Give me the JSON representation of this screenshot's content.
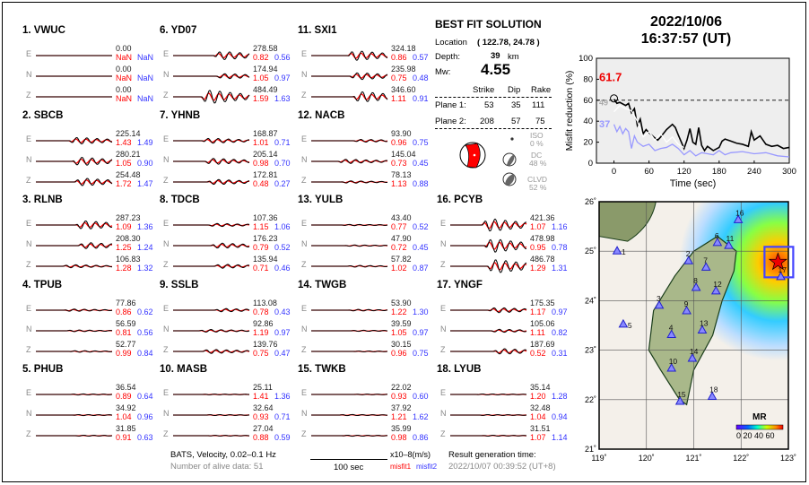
{
  "stations": [
    {
      "name": "1.  VWUC",
      "col": 0,
      "row": 0,
      "comps": [
        [
          "E",
          "0.00",
          "NaN",
          "NaN"
        ],
        [
          "N",
          "0.00",
          "NaN",
          "NaN"
        ],
        [
          "Z",
          "0.00",
          "NaN",
          "NaN"
        ]
      ]
    },
    {
      "name": "2.  SBCB",
      "col": 0,
      "row": 1,
      "comps": [
        [
          "E",
          "225.14",
          "1.43",
          "1.49"
        ],
        [
          "N",
          "280.21",
          "1.05",
          "0.90"
        ],
        [
          "Z",
          "254.48",
          "1.72",
          "1.47"
        ]
      ]
    },
    {
      "name": "3.  RLNB",
      "col": 0,
      "row": 2,
      "comps": [
        [
          "E",
          "287.23",
          "1.09",
          "1.36"
        ],
        [
          "N",
          "208.30",
          "1.25",
          "1.24"
        ],
        [
          "Z",
          "106.83",
          "1.28",
          "1.32"
        ]
      ]
    },
    {
      "name": "4.  TPUB",
      "col": 0,
      "row": 3,
      "comps": [
        [
          "E",
          "77.86",
          "0.86",
          "0.62"
        ],
        [
          "N",
          "56.59",
          "0.81",
          "0.56"
        ],
        [
          "Z",
          "52.77",
          "0.99",
          "0.84"
        ]
      ]
    },
    {
      "name": "5.  PHUB",
      "col": 0,
      "row": 4,
      "comps": [
        [
          "E",
          "36.54",
          "0.89",
          "0.64"
        ],
        [
          "N",
          "34.92",
          "1.04",
          "0.96"
        ],
        [
          "Z",
          "31.85",
          "0.91",
          "0.63"
        ]
      ]
    },
    {
      "name": "6.  YD07",
      "col": 1,
      "row": 0,
      "comps": [
        [
          "E",
          "278.58",
          "0.82",
          "0.56"
        ],
        [
          "N",
          "174.94",
          "1.05",
          "0.97"
        ],
        [
          "Z",
          "484.49",
          "1.59",
          "1.63"
        ]
      ]
    },
    {
      "name": "7.  YHNB",
      "col": 1,
      "row": 1,
      "comps": [
        [
          "E",
          "168.87",
          "1.01",
          "0.71"
        ],
        [
          "N",
          "205.14",
          "0.98",
          "0.70"
        ],
        [
          "Z",
          "172.81",
          "0.48",
          "0.27"
        ]
      ]
    },
    {
      "name": "8.  TDCB",
      "col": 1,
      "row": 2,
      "comps": [
        [
          "E",
          "107.36",
          "1.15",
          "1.06"
        ],
        [
          "N",
          "176.23",
          "0.79",
          "0.52"
        ],
        [
          "Z",
          "135.94",
          "0.71",
          "0.46"
        ]
      ]
    },
    {
      "name": "9.  SSLB",
      "col": 1,
      "row": 3,
      "comps": [
        [
          "E",
          "113.08",
          "0.78",
          "0.43"
        ],
        [
          "N",
          "92.86",
          "1.19",
          "0.97"
        ],
        [
          "Z",
          "139.76",
          "0.75",
          "0.47"
        ]
      ]
    },
    {
      "name": "10. MASB",
      "col": 1,
      "row": 4,
      "comps": [
        [
          "E",
          "25.11",
          "1.41",
          "1.36"
        ],
        [
          "N",
          "32.64",
          "0.93",
          "0.71"
        ],
        [
          "Z",
          "27.04",
          "0.88",
          "0.59"
        ]
      ]
    },
    {
      "name": "11. SXI1",
      "col": 2,
      "row": 0,
      "comps": [
        [
          "E",
          "324.18",
          "0.86",
          "0.57"
        ],
        [
          "N",
          "235.98",
          "0.75",
          "0.48"
        ],
        [
          "Z",
          "346.60",
          "1.11",
          "0.91"
        ]
      ]
    },
    {
      "name": "12. NACB",
      "col": 2,
      "row": 1,
      "comps": [
        [
          "E",
          "93.90",
          "0.96",
          "0.75"
        ],
        [
          "N",
          "145.04",
          "0.73",
          "0.45"
        ],
        [
          "Z",
          "78.13",
          "1.13",
          "0.88"
        ]
      ]
    },
    {
      "name": "13. YULB",
      "col": 2,
      "row": 2,
      "comps": [
        [
          "E",
          "43.40",
          "0.77",
          "0.52"
        ],
        [
          "N",
          "47.90",
          "0.72",
          "0.45"
        ],
        [
          "Z",
          "57.82",
          "1.02",
          "0.87"
        ]
      ]
    },
    {
      "name": "14. TWGB",
      "col": 2,
      "row": 3,
      "comps": [
        [
          "E",
          "53.90",
          "1.22",
          "1.30"
        ],
        [
          "N",
          "39.59",
          "1.05",
          "0.97"
        ],
        [
          "Z",
          "30.15",
          "0.96",
          "0.75"
        ]
      ]
    },
    {
      "name": "15. TWKB",
      "col": 2,
      "row": 4,
      "comps": [
        [
          "E",
          "22.02",
          "0.93",
          "0.60"
        ],
        [
          "N",
          "37.92",
          "1.21",
          "1.62"
        ],
        [
          "Z",
          "35.99",
          "0.98",
          "0.86"
        ]
      ]
    },
    {
      "name": "16. PCYB",
      "col": 3,
      "row": 2,
      "comps": [
        [
          "E",
          "421.36",
          "1.07",
          "1.16"
        ],
        [
          "N",
          "478.98",
          "0.95",
          "0.78"
        ],
        [
          "Z",
          "486.78",
          "1.29",
          "1.31"
        ]
      ]
    },
    {
      "name": "17. YNGF",
      "col": 3,
      "row": 3,
      "comps": [
        [
          "E",
          "175.35",
          "1.17",
          "0.97"
        ],
        [
          "N",
          "105.06",
          "1.11",
          "0.82"
        ],
        [
          "Z",
          "187.69",
          "0.52",
          "0.31"
        ]
      ]
    },
    {
      "name": "18. LYUB",
      "col": 3,
      "row": 4,
      "comps": [
        [
          "E",
          "35.14",
          "1.20",
          "1.28"
        ],
        [
          "N",
          "32.48",
          "1.04",
          "0.94"
        ],
        [
          "Z",
          "31.51",
          "1.07",
          "1.14"
        ]
      ]
    }
  ],
  "footer": {
    "network": "BATS, Velocity, 0.02–0.1 Hz",
    "alive": "Number of alive data: 51",
    "scale": "100 sec",
    "units": "x10–8(m/s)",
    "misfit1": "misfit1",
    "misfit2": "misfit2",
    "gen_label": "Result generation time:",
    "gen_time": "2022/10/07 00:39:52 (UT+8)"
  },
  "solution": {
    "title": "BEST FIT SOLUTION",
    "location_label": "Location",
    "location": "( 122.78,  24.78 )",
    "depth_label": "Depth:",
    "depth": "39",
    "depth_unit": "km",
    "mw_label": "Mw:",
    "mw": "4.55",
    "headers": [
      "Strike",
      "Dip",
      "Rake"
    ],
    "planes": [
      {
        "label": "Plane 1:",
        "strike": "53",
        "dip": "35",
        "rake": "111"
      },
      {
        "label": "Plane 2:",
        "strike": "208",
        "dip": "57",
        "rake": "75"
      }
    ],
    "iso_label": "ISO",
    "iso": "0  %",
    "dc_label": "DC",
    "dc": "48 %",
    "clvd_label": "CLVD",
    "clvd": "52 %"
  },
  "event": {
    "date": "2022/10/06",
    "time": "16:37:57  (UT)"
  },
  "chart_data": {
    "type": "line",
    "xlabel": "Time (sec)",
    "ylabel": "Misfit reduction (%)",
    "xlim": [
      -30,
      300
    ],
    "ylim": [
      0,
      100
    ],
    "xticks": [
      "0",
      "60",
      "120",
      "180",
      "240",
      "300"
    ],
    "yticks": [
      "0",
      "20",
      "40",
      "60",
      "80",
      "100"
    ],
    "best_label": "61.7",
    "label_gray": "49",
    "label_blue": "37",
    "threshold": 60,
    "series": [
      {
        "color": "#000000",
        "x": [
          0,
          5,
          10,
          20,
          25,
          30,
          35,
          40,
          45,
          50,
          55,
          60,
          70,
          75,
          80,
          90,
          100,
          105,
          110,
          120,
          125,
          130,
          135,
          140,
          145,
          150,
          155,
          160,
          170,
          180,
          185,
          190,
          200,
          210,
          220,
          230,
          235,
          240,
          250,
          260,
          270,
          280,
          290,
          300
        ],
        "y": [
          61,
          57,
          58,
          55,
          57,
          48,
          52,
          36,
          42,
          28,
          32,
          29,
          24,
          22,
          25,
          32,
          37,
          34,
          27,
          14,
          22,
          33,
          20,
          18,
          34,
          17,
          12,
          16,
          12,
          15,
          21,
          23,
          21,
          19,
          18,
          16,
          30,
          22,
          26,
          18,
          16,
          17,
          14,
          15
        ]
      },
      {
        "color": "#ffffff",
        "x": [
          0,
          10,
          20,
          30,
          35,
          40,
          50,
          60,
          70,
          80,
          90,
          100,
          110,
          120
        ],
        "y": [
          49,
          55,
          52,
          50,
          45,
          40,
          25,
          30,
          22,
          28,
          20,
          25,
          18,
          15
        ]
      },
      {
        "color": "#9999ff",
        "x": [
          0,
          5,
          10,
          15,
          20,
          25,
          30,
          35,
          40,
          50,
          60,
          70,
          80,
          90,
          100,
          110,
          120,
          130,
          140,
          150,
          160,
          170,
          180,
          190,
          200,
          220,
          240,
          260,
          280,
          300
        ],
        "y": [
          37,
          30,
          35,
          28,
          33,
          30,
          14,
          26,
          20,
          16,
          18,
          12,
          14,
          15,
          18,
          14,
          8,
          12,
          7,
          10,
          9,
          8,
          12,
          8,
          10,
          11,
          9,
          10,
          7,
          6
        ]
      }
    ]
  },
  "map": {
    "lon_ticks": [
      "119˚",
      "120˚",
      "121˚",
      "122˚",
      "123˚"
    ],
    "lat_ticks": [
      "21˚",
      "22˚",
      "23˚",
      "24˚",
      "25˚",
      "26˚"
    ],
    "colorbar_title": "MR",
    "colorbar_ticks": "0 20 40 60",
    "event": [
      122.78,
      24.78
    ],
    "stations": [
      [
        "1",
        119.38,
        25.0
      ],
      [
        "2",
        120.89,
        24.8
      ],
      [
        "3",
        120.27,
        23.9
      ],
      [
        "4",
        120.53,
        23.31
      ],
      [
        "5",
        119.51,
        23.52
      ],
      [
        "6",
        121.5,
        25.17
      ],
      [
        "7",
        121.26,
        24.67
      ],
      [
        "8",
        121.05,
        24.26
      ],
      [
        "9",
        120.85,
        23.79
      ],
      [
        "10",
        120.53,
        22.63
      ],
      [
        "11",
        121.74,
        25.11
      ],
      [
        "12",
        121.47,
        24.19
      ],
      [
        "13",
        121.18,
        23.4
      ],
      [
        "14",
        120.97,
        22.83
      ],
      [
        "15",
        120.71,
        21.96
      ],
      [
        "16",
        121.94,
        25.63
      ],
      [
        "17",
        122.84,
        24.48
      ],
      [
        "18",
        121.39,
        22.06
      ]
    ]
  },
  "colors": {
    "observed": "#000000",
    "synthetic": "#ff0000",
    "misfit1": "#ff0000",
    "misfit2": "#3333ff"
  }
}
